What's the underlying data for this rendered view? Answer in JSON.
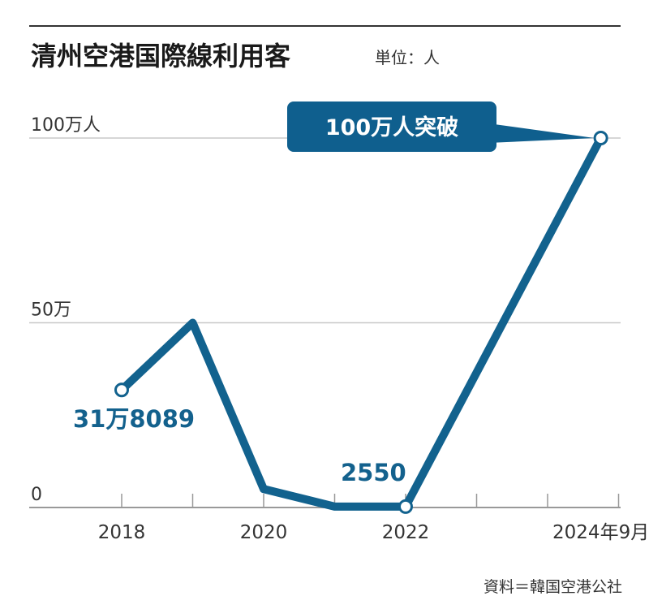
{
  "chart_data": {
    "type": "line",
    "title": "清州空港国際線利用客",
    "unit_label": "単位：人",
    "source": "資料＝韓国空港公社",
    "x": [
      2018,
      2019,
      2020,
      2021,
      2022,
      2024.75
    ],
    "x_ticks": [
      "2018",
      "2020",
      "2022",
      "2024年9月"
    ],
    "y": [
      318089,
      500000,
      50000,
      2550,
      2550,
      1000000
    ],
    "y_ticks": [
      "0",
      "50万",
      "100万人"
    ],
    "ylim": [
      0,
      1000000
    ],
    "grid": true,
    "annotations": [
      {
        "text": "31万8089"
      },
      {
        "text": "2550"
      },
      {
        "text": "100万人突破"
      }
    ],
    "colors": {
      "line": "#12628e",
      "label": "#13618d",
      "callout": "#0f5f8e",
      "grid": "#c8c8c8",
      "axis": "#999999",
      "title_rule": "#333333"
    }
  }
}
